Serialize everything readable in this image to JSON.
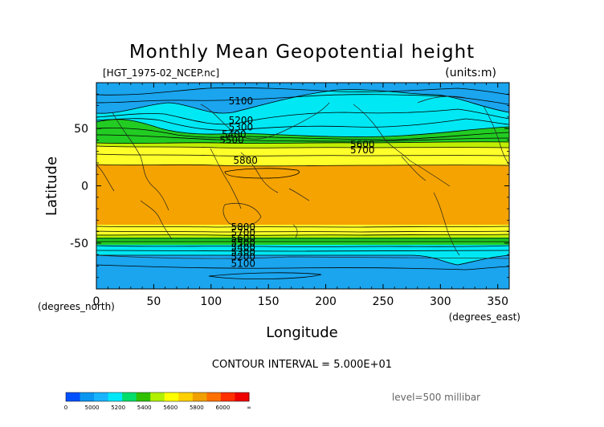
{
  "title": "Monthly Mean Geopotential height",
  "file_label": "[HGT_1975-02_NCEP.nc]",
  "units_label": "(units:m)",
  "contour_interval": "CONTOUR INTERVAL = 5.000E+01",
  "level_label": "level=500 millibar",
  "chart_data": {
    "type": "contour",
    "variable": "Geopotential height",
    "level": "500 millibar",
    "xlabel": "Longitude",
    "ylabel": "Latitude",
    "x_unit": "(degrees_east)",
    "y_unit": "(degrees_north)",
    "xlim": [
      0,
      360
    ],
    "ylim": [
      -90,
      90
    ],
    "x_ticks": [
      0,
      50,
      100,
      150,
      200,
      250,
      300,
      350
    ],
    "y_ticks": [
      -50,
      0,
      50
    ],
    "contour_interval": 50,
    "contour_labels": [
      {
        "text": "5100",
        "lon": 126,
        "lat": 74
      },
      {
        "text": "5200",
        "lon": 126,
        "lat": 57
      },
      {
        "text": "5300",
        "lon": 126,
        "lat": 51
      },
      {
        "text": "5400",
        "lon": 120,
        "lat": 45
      },
      {
        "text": "5500",
        "lon": 118,
        "lat": 40
      },
      {
        "text": "5600",
        "lon": 232,
        "lat": 36
      },
      {
        "text": "5700",
        "lon": 232,
        "lat": 31
      },
      {
        "text": "5800",
        "lon": 130,
        "lat": 22
      },
      {
        "text": "5800",
        "lon": 128,
        "lat": -36
      },
      {
        "text": "5700",
        "lon": 128,
        "lat": -41
      },
      {
        "text": "5600",
        "lon": 128,
        "lat": -46
      },
      {
        "text": "5500",
        "lon": 128,
        "lat": -50
      },
      {
        "text": "5400",
        "lon": 128,
        "lat": -54
      },
      {
        "text": "5300",
        "lon": 128,
        "lat": -58
      },
      {
        "text": "5200",
        "lon": 128,
        "lat": -62
      },
      {
        "text": "5100",
        "lon": 128,
        "lat": -68
      }
    ],
    "colorbar": {
      "labels": [
        "0",
        "5000",
        "5200",
        "5400",
        "5600",
        "5800",
        "6000",
        "∞"
      ],
      "colors": [
        "#0050ff",
        "#0a96f0",
        "#18b4ff",
        "#00e8f8",
        "#00dd6a",
        "#30c000",
        "#b0f000",
        "#ffff00",
        "#ffd000",
        "#f0a000",
        "#ff7000",
        "#ff3000",
        "#ee0000"
      ]
    },
    "band_colors": {
      "below_5100": "#1aa5ee",
      "5100_5300": "#00e8f4",
      "5300_5500": "#22cc22",
      "5500_5600": "#c0ee00",
      "5600_5800": "#ffff2a",
      "above_5800": "#f5a300"
    }
  }
}
